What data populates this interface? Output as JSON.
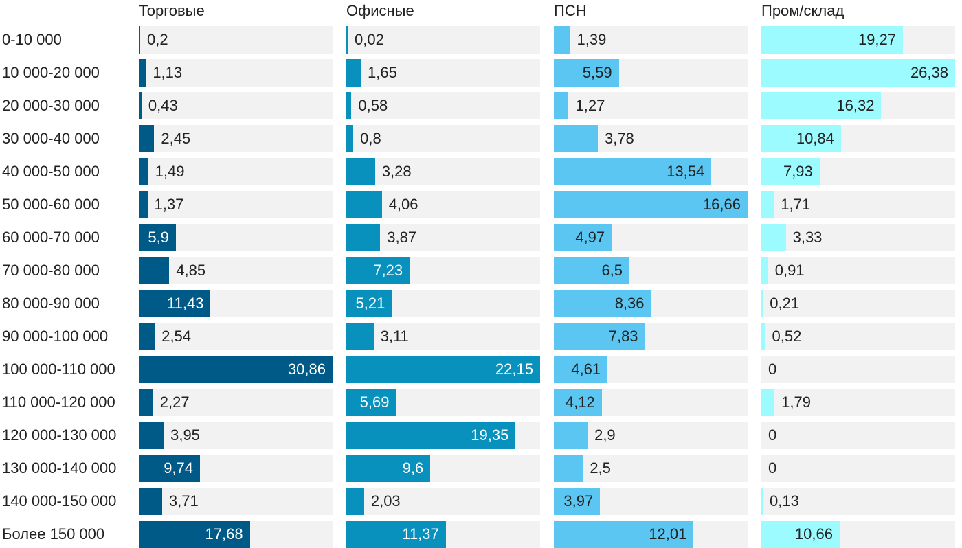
{
  "chart_data": {
    "type": "bar",
    "orientation": "horizontal",
    "layout": "small-multiples",
    "categories": [
      "0-10 000",
      "10 000-20 000",
      "20 000-30 000",
      "30 000-40 000",
      "40 000-50 000",
      "50 000-60 000",
      "60 000-70 000",
      "70 000-80 000",
      "80 000-90 000",
      "90 000-100 000",
      "100 000-110 000",
      "110 000-120 000",
      "120 000-130 000",
      "130 000-140 000",
      "140 000-150 000",
      "Более 150 000"
    ],
    "series": [
      {
        "name": "Торговые",
        "color": "#005a87",
        "label_inside_color": "#ffffff",
        "values": [
          0.2,
          1.13,
          0.43,
          2.45,
          1.49,
          1.37,
          5.9,
          4.85,
          11.43,
          2.54,
          30.86,
          2.27,
          3.95,
          9.74,
          3.71,
          17.68
        ],
        "labels": [
          "0,2",
          "1,13",
          "0,43",
          "2,45",
          "1,49",
          "1,37",
          "5,9",
          "4,85",
          "11,43",
          "2,54",
          "30,86",
          "2,27",
          "3,95",
          "9,74",
          "3,71",
          "17,68"
        ]
      },
      {
        "name": "Офисные",
        "color": "#0891bd",
        "label_inside_color": "#ffffff",
        "values": [
          0.02,
          1.65,
          0.58,
          0.8,
          3.28,
          4.06,
          3.87,
          7.23,
          5.21,
          3.11,
          22.15,
          5.69,
          19.35,
          9.6,
          2.03,
          11.37
        ],
        "labels": [
          "0,02",
          "1,65",
          "0,58",
          "0,8",
          "3,28",
          "4,06",
          "3,87",
          "7,23",
          "5,21",
          "3,11",
          "22,15",
          "5,69",
          "19,35",
          "9,6",
          "2,03",
          "11,37"
        ]
      },
      {
        "name": "ПСН",
        "color": "#5bc6f2",
        "label_inside_color": "#222222",
        "values": [
          1.39,
          5.59,
          1.27,
          3.78,
          13.54,
          16.66,
          4.97,
          6.5,
          8.36,
          7.83,
          4.61,
          4.12,
          2.9,
          2.5,
          3.97,
          12.01
        ],
        "labels": [
          "1,39",
          "5,59",
          "1,27",
          "3,78",
          "13,54",
          "16,66",
          "4,97",
          "6,5",
          "8,36",
          "7,83",
          "4,61",
          "4,12",
          "2,9",
          "2,5",
          "3,97",
          "12,01"
        ]
      },
      {
        "name": "Пром/склад",
        "color": "#9bfbff",
        "label_inside_color": "#222222",
        "values": [
          19.27,
          26.38,
          16.32,
          10.84,
          7.93,
          1.71,
          3.33,
          0.91,
          0.21,
          0.52,
          0,
          1.79,
          0,
          0,
          0.13,
          10.66
        ],
        "labels": [
          "19,27",
          "26,38",
          "16,32",
          "10,84",
          "7,93",
          "1,71",
          "3,33",
          "0,91",
          "0,21",
          "0,52",
          "0",
          "1,79",
          "0",
          "0",
          "0,13",
          "10,66"
        ]
      }
    ],
    "track_color": "#f2f2f2",
    "scale": "each panel scaled to its own maximum",
    "grid": false,
    "legend": "none"
  }
}
